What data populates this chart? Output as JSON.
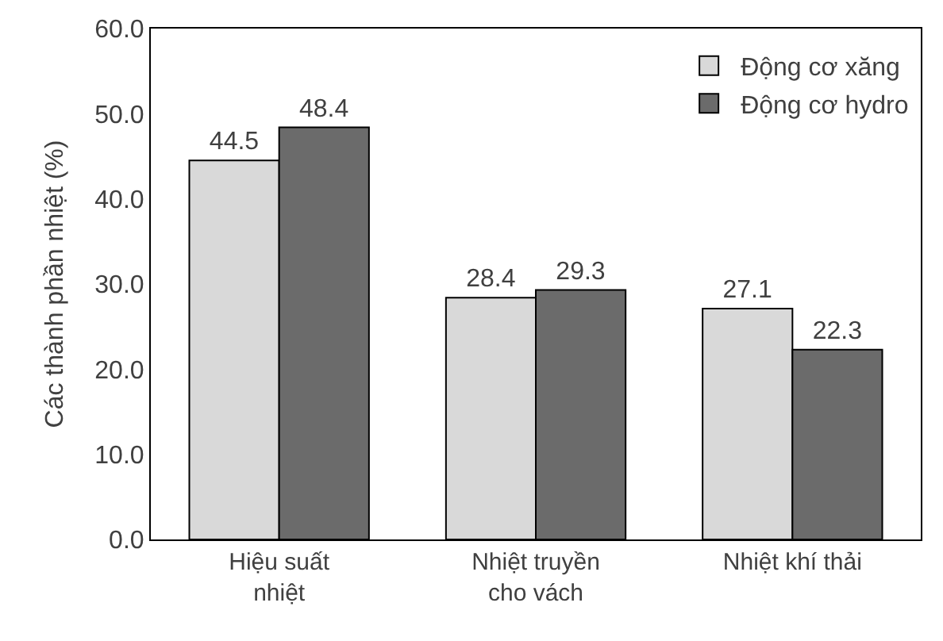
{
  "chart_data": {
    "type": "bar",
    "ylabel": "Các thành phần nhiệt (%)",
    "categories": [
      "Hiệu suất nhiệt",
      "Nhiệt truyền cho vách",
      "Nhiệt khí thải"
    ],
    "series": [
      {
        "name": "Động cơ xăng",
        "color": "#d9d9d9",
        "values": [
          44.5,
          28.4,
          27.1
        ]
      },
      {
        "name": "Động cơ hydro",
        "color": "#6b6b6b",
        "values": [
          48.4,
          29.3,
          22.3
        ]
      }
    ],
    "ylim": [
      0,
      60
    ],
    "yticks": [
      {
        "value": 0,
        "label": "0.0"
      },
      {
        "value": 10,
        "label": "10.0"
      },
      {
        "value": 20,
        "label": "20.0"
      },
      {
        "value": 30,
        "label": "30.0"
      },
      {
        "value": 40,
        "label": "40.0"
      },
      {
        "value": 50,
        "label": "50.0"
      },
      {
        "value": 60,
        "label": "60.0"
      }
    ],
    "data_labels": true,
    "legend": "top right"
  }
}
